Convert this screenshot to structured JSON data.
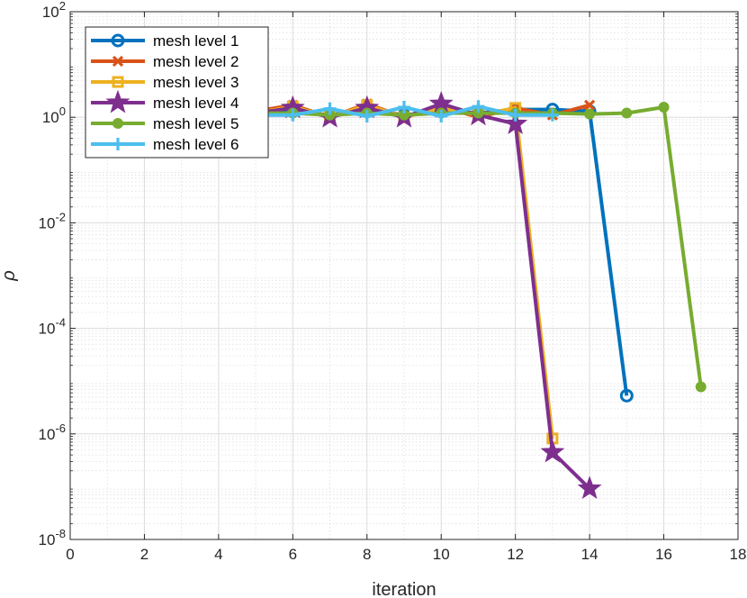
{
  "chart_data": {
    "type": "line",
    "yscale": "log",
    "xlabel": "iteration",
    "ylabel": "ρ",
    "xlim": [
      0,
      18
    ],
    "ylim_exponents": [
      -8,
      2
    ],
    "x_ticks": [
      "0",
      "2",
      "4",
      "6",
      "8",
      "10",
      "12",
      "14",
      "16",
      "18"
    ],
    "y_tick_mantissa": "10",
    "y_tick_exponents": [
      "-8",
      "-6",
      "-4",
      "-2",
      "0",
      "2"
    ],
    "grid": true,
    "minor_grid": true,
    "legend_position": "top-left",
    "series": [
      {
        "name": "mesh level 1",
        "color": "#0072BD",
        "marker": "circle",
        "x": [
          5,
          6,
          7,
          8,
          9,
          10,
          11,
          12,
          13,
          14,
          15
        ],
        "y": [
          1.2,
          1.3,
          1.1,
          1.4,
          1.1,
          1.3,
          1.2,
          1.4,
          1.4,
          1.3,
          5.3e-06
        ]
      },
      {
        "name": "mesh level 2",
        "color": "#D95319",
        "marker": "x",
        "x": [
          5,
          6,
          7,
          8,
          9,
          10,
          11,
          12,
          13,
          14
        ],
        "y": [
          1.3,
          1.7,
          1.0,
          1.8,
          1.0,
          1.6,
          1.0,
          1.5,
          1.1,
          1.7
        ]
      },
      {
        "name": "mesh level 3",
        "color": "#EDB120",
        "marker": "square",
        "x": [
          5,
          6,
          7,
          8,
          9,
          10,
          11,
          12,
          13
        ],
        "y": [
          1.2,
          1.6,
          1.0,
          1.7,
          1.0,
          1.5,
          1.1,
          1.5,
          8.2e-07
        ]
      },
      {
        "name": "mesh level 4",
        "color": "#7E2F8E",
        "marker": "star",
        "x": [
          5,
          6,
          7,
          8,
          9,
          10,
          11,
          12,
          13,
          14
        ],
        "y": [
          1.2,
          1.5,
          1.0,
          1.5,
          1.0,
          1.8,
          1.1,
          0.75,
          4.5e-07,
          9.2e-08
        ]
      },
      {
        "name": "mesh level 5",
        "color": "#77AC30",
        "marker": "dot",
        "x": [
          5,
          6,
          7,
          8,
          9,
          10,
          11,
          12,
          13,
          14,
          15,
          16,
          17
        ],
        "y": [
          1.2,
          1.2,
          1.1,
          1.2,
          1.1,
          1.2,
          1.2,
          1.2,
          1.2,
          1.15,
          1.2,
          1.55,
          7.8e-06
        ]
      },
      {
        "name": "mesh level 6",
        "color": "#4DBEEE",
        "marker": "plus",
        "x": [
          5,
          6,
          7,
          8,
          9,
          10,
          11,
          12,
          13
        ],
        "y": [
          1.1,
          1.1,
          1.45,
          1.05,
          1.55,
          1.05,
          1.6,
          1.1,
          1.1
        ]
      }
    ]
  }
}
